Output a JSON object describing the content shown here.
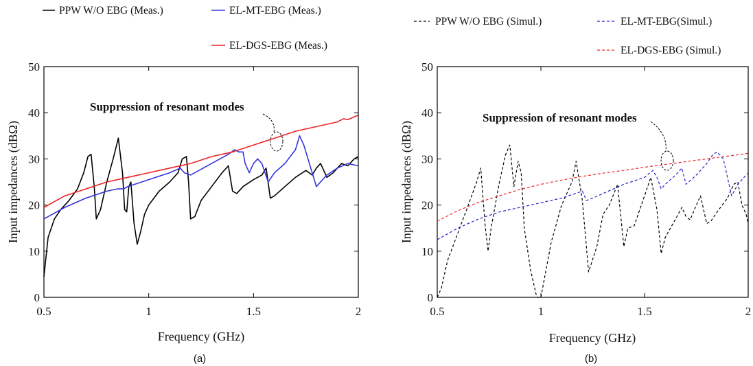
{
  "chart_data": [
    {
      "type": "line",
      "caption": "(a)",
      "xlabel": "Frequency (GHz)",
      "ylabel": "Input impedances (dBΩ)",
      "xlim": [
        0.5,
        2
      ],
      "ylim": [
        0,
        50
      ],
      "xticks": [
        0.5,
        1,
        1.5,
        2
      ],
      "xtick_labels": [
        "0.5",
        "1",
        "1.5",
        "2"
      ],
      "yticks": [
        0,
        10,
        20,
        30,
        40,
        50
      ],
      "ytick_labels": [
        "0",
        "10",
        "20",
        "30",
        "40",
        "50"
      ],
      "grid": false,
      "legend_position": "top",
      "annotation": "Suppression of resonant modes",
      "series": [
        {
          "name": "PPW W/O EBG (Meas.)",
          "color": "#000000",
          "style": "solid",
          "x": [
            0.5,
            0.52,
            0.55,
            0.58,
            0.62,
            0.66,
            0.69,
            0.71,
            0.725,
            0.74,
            0.75,
            0.77,
            0.8,
            0.83,
            0.855,
            0.875,
            0.885,
            0.895,
            0.905,
            0.915,
            0.93,
            0.945,
            0.96,
            0.98,
            1.0,
            1.05,
            1.1,
            1.14,
            1.16,
            1.18,
            1.19,
            1.2,
            1.22,
            1.25,
            1.3,
            1.35,
            1.38,
            1.4,
            1.42,
            1.45,
            1.5,
            1.54,
            1.56,
            1.58,
            1.6,
            1.65,
            1.7,
            1.75,
            1.78,
            1.8,
            1.82,
            1.85,
            1.88,
            1.9,
            1.92,
            1.95,
            1.98,
            2.0
          ],
          "y": [
            4.5,
            13,
            17,
            19,
            21,
            23.5,
            27,
            30.5,
            31,
            24,
            17,
            19,
            25,
            30,
            34.5,
            27,
            19,
            18.5,
            24,
            25,
            16,
            11.5,
            14,
            18,
            20,
            23,
            25,
            27,
            30,
            30.5,
            25,
            17,
            17.5,
            21,
            24,
            27,
            28.5,
            23,
            22.5,
            24,
            25.5,
            26.5,
            28,
            21.5,
            22,
            24,
            26,
            27.5,
            26.5,
            28,
            29,
            26,
            27,
            28,
            29,
            28.5,
            30,
            30.5
          ]
        },
        {
          "name": "EL-MT-EBG (Meas.)",
          "color": "#3333dd",
          "style": "solid",
          "x": [
            0.5,
            0.6,
            0.7,
            0.8,
            0.85,
            0.88,
            0.9,
            1.0,
            1.1,
            1.15,
            1.17,
            1.2,
            1.3,
            1.38,
            1.41,
            1.43,
            1.45,
            1.46,
            1.48,
            1.5,
            1.52,
            1.54,
            1.57,
            1.6,
            1.65,
            1.7,
            1.72,
            1.74,
            1.76,
            1.78,
            1.8,
            1.85,
            1.9,
            1.95,
            2.0
          ],
          "y": [
            17,
            19.5,
            21.5,
            23,
            23.5,
            23.5,
            24,
            25.5,
            27,
            28,
            27,
            26.5,
            29,
            31,
            32,
            31.5,
            31.5,
            29,
            27,
            29,
            30,
            29,
            25,
            27,
            29,
            32,
            35,
            33,
            30,
            27,
            24,
            26.5,
            28,
            29,
            28.5
          ]
        },
        {
          "name": "EL-DGS-EBG (Meas.)",
          "color": "#ee2222",
          "style": "solid",
          "x": [
            0.5,
            0.6,
            0.7,
            0.8,
            0.9,
            1.0,
            1.1,
            1.2,
            1.3,
            1.4,
            1.5,
            1.6,
            1.7,
            1.8,
            1.85,
            1.9,
            1.93,
            1.95,
            2.0
          ],
          "y": [
            19.5,
            22,
            23.5,
            25,
            26,
            27,
            28,
            29,
            30.5,
            31.5,
            33,
            34.5,
            36,
            37,
            37.5,
            38,
            38.7,
            38.5,
            39.5
          ]
        }
      ]
    },
    {
      "type": "line",
      "caption": "(b)",
      "xlabel": "Frequency (GHz)",
      "ylabel": "Input impedances (dBΩ)",
      "xlim": [
        0.5,
        2
      ],
      "ylim": [
        0,
        50
      ],
      "xticks": [
        0.5,
        1,
        1.5,
        2
      ],
      "xtick_labels": [
        "0.5",
        "1",
        "1.5",
        "2"
      ],
      "yticks": [
        0,
        10,
        20,
        30,
        40,
        50
      ],
      "ytick_labels": [
        "0",
        "10",
        "20",
        "30",
        "40",
        "50"
      ],
      "grid": false,
      "legend_position": "top",
      "annotation": "Suppression of resonant modes",
      "series": [
        {
          "name": "PPW W/O EBG (Simul.)",
          "color": "#000000",
          "style": "dashed",
          "x": [
            0.5,
            0.52,
            0.55,
            0.6,
            0.65,
            0.69,
            0.71,
            0.73,
            0.745,
            0.76,
            0.8,
            0.83,
            0.85,
            0.87,
            0.89,
            0.905,
            0.92,
            0.95,
            0.98,
            0.99,
            1.0,
            1.05,
            1.1,
            1.15,
            1.17,
            1.2,
            1.23,
            1.27,
            1.3,
            1.33,
            1.37,
            1.4,
            1.42,
            1.45,
            1.5,
            1.53,
            1.56,
            1.58,
            1.6,
            1.65,
            1.68,
            1.7,
            1.72,
            1.75,
            1.77,
            1.8,
            1.82,
            1.85,
            1.9,
            1.93,
            1.95,
            1.97,
            1.99,
            2.0
          ],
          "y": [
            0,
            2,
            8,
            14,
            20,
            25,
            28,
            16,
            10,
            15,
            25,
            31,
            33,
            24,
            29.5,
            27,
            15,
            6,
            0,
            0,
            0,
            12,
            20,
            25,
            29.5,
            21,
            5.5,
            11,
            18,
            20,
            24.5,
            11,
            15,
            15.5,
            22,
            26,
            19,
            9.5,
            13,
            17,
            19.5,
            17.5,
            16.8,
            20,
            22,
            16,
            16.5,
            18.5,
            21.5,
            24.5,
            25,
            20,
            18,
            16
          ]
        },
        {
          "name": "EL-MT-EBG(Simul.)",
          "color": "#2222cc",
          "style": "dashed",
          "x": [
            0.5,
            0.6,
            0.7,
            0.8,
            0.9,
            1.0,
            1.1,
            1.2,
            1.22,
            1.25,
            1.3,
            1.4,
            1.5,
            1.54,
            1.56,
            1.58,
            1.6,
            1.65,
            1.68,
            1.7,
            1.75,
            1.8,
            1.83,
            1.85,
            1.88,
            1.9,
            1.92,
            1.95,
            2.0
          ],
          "y": [
            12.5,
            15,
            17,
            18.5,
            19.5,
            20.5,
            21.5,
            23,
            21,
            21.5,
            22.5,
            24.5,
            26,
            27.5,
            26,
            23.5,
            24.5,
            26.5,
            28,
            24.5,
            26.5,
            29,
            31,
            31.5,
            30,
            26,
            22,
            24.5,
            27
          ]
        },
        {
          "name": "EL-DGS-EBG (Simul.)",
          "color": "#ee2222",
          "style": "dashed",
          "x": [
            0.5,
            0.6,
            0.7,
            0.8,
            0.9,
            1.0,
            1.1,
            1.2,
            1.3,
            1.4,
            1.5,
            1.6,
            1.7,
            1.8,
            1.9,
            2.0
          ],
          "y": [
            16.5,
            18.8,
            20.6,
            22,
            23.4,
            24.5,
            25.4,
            26.2,
            26.9,
            27.5,
            28.2,
            28.8,
            29.4,
            30,
            30.6,
            31.2
          ]
        }
      ]
    }
  ]
}
